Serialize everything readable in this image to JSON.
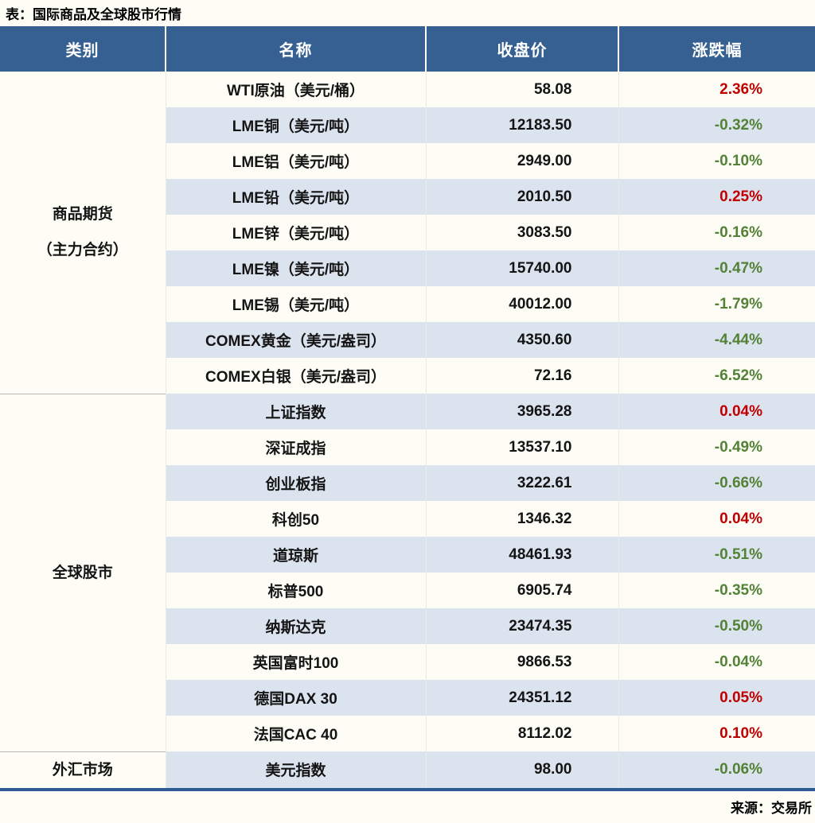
{
  "title": "表：国际商品及全球股市行情",
  "source": "来源：交易所",
  "colors": {
    "page_bg": "#FDFDF6",
    "header_bg": "#366092",
    "header_text": "#FFFFFF",
    "row_alt_bg": "#DBE3EF",
    "positive_red": "#C00000",
    "negative_green": "#538135",
    "bottom_border_blue": "#2E5B96",
    "group_divider_gray": "#B9B9B9"
  },
  "table": {
    "headers": [
      "类别",
      "名称",
      "收盘价",
      "涨跌幅"
    ],
    "groups": [
      {
        "category": "商品期货（主力合约）",
        "category_lines": [
          "商品期货",
          "（主力合约）"
        ],
        "rows": [
          {
            "name": "WTI原油（美元/桶）",
            "close": "58.08",
            "change": "2.36%"
          },
          {
            "name": "LME铜（美元/吨）",
            "close": "12183.50",
            "change": "-0.32%"
          },
          {
            "name": "LME铝（美元/吨）",
            "close": "2949.00",
            "change": "-0.10%"
          },
          {
            "name": "LME铅（美元/吨）",
            "close": "2010.50",
            "change": "0.25%"
          },
          {
            "name": "LME锌（美元/吨）",
            "close": "3083.50",
            "change": "-0.16%"
          },
          {
            "name": "LME镍（美元/吨）",
            "close": "15740.00",
            "change": "-0.47%"
          },
          {
            "name": "LME锡（美元/吨）",
            "close": "40012.00",
            "change": "-1.79%"
          },
          {
            "name": "COMEX黄金（美元/盎司）",
            "close": "4350.60",
            "change": "-4.44%"
          },
          {
            "name": "COMEX白银（美元/盎司）",
            "close": "72.16",
            "change": "-6.52%"
          }
        ]
      },
      {
        "category": "全球股市",
        "category_lines": [
          "全球股市"
        ],
        "rows": [
          {
            "name": "上证指数",
            "close": "3965.28",
            "change": "0.04%"
          },
          {
            "name": "深证成指",
            "close": "13537.10",
            "change": "-0.49%"
          },
          {
            "name": "创业板指",
            "close": "3222.61",
            "change": "-0.66%"
          },
          {
            "name": "科创50",
            "close": "1346.32",
            "change": "0.04%"
          },
          {
            "name": "道琼斯",
            "close": "48461.93",
            "change": "-0.51%"
          },
          {
            "name": "标普500",
            "close": "6905.74",
            "change": "-0.35%"
          },
          {
            "name": "纳斯达克",
            "close": "23474.35",
            "change": "-0.50%"
          },
          {
            "name": "英国富时100",
            "close": "9866.53",
            "change": "-0.04%"
          },
          {
            "name": "德国DAX 30",
            "close": "24351.12",
            "change": "0.05%"
          },
          {
            "name": "法国CAC 40",
            "close": "8112.02",
            "change": "0.10%"
          }
        ]
      },
      {
        "category": "外汇市场",
        "category_lines": [
          "外汇市场"
        ],
        "rows": [
          {
            "name": "美元指数",
            "close": "98.00",
            "change": "-0.06%"
          }
        ]
      }
    ]
  },
  "chart_data": {
    "type": "table",
    "title": "表：国际商品及全球股市行情",
    "columns": [
      "类别",
      "名称",
      "收盘价",
      "涨跌幅"
    ],
    "rows": [
      [
        "商品期货（主力合约）",
        "WTI原油（美元/桶）",
        58.08,
        "2.36%"
      ],
      [
        "商品期货（主力合约）",
        "LME铜（美元/吨）",
        12183.5,
        "-0.32%"
      ],
      [
        "商品期货（主力合约）",
        "LME铝（美元/吨）",
        2949.0,
        "-0.10%"
      ],
      [
        "商品期货（主力合约）",
        "LME铅（美元/吨）",
        2010.5,
        "0.25%"
      ],
      [
        "商品期货（主力合约）",
        "LME锌（美元/吨）",
        3083.5,
        "-0.16%"
      ],
      [
        "商品期货（主力合约）",
        "LME镍（美元/吨）",
        15740.0,
        "-0.47%"
      ],
      [
        "商品期货（主力合约）",
        "LME锡（美元/吨）",
        40012.0,
        "-1.79%"
      ],
      [
        "商品期货（主力合约）",
        "COMEX黄金（美元/盎司）",
        4350.6,
        "-4.44%"
      ],
      [
        "商品期货（主力合约）",
        "COMEX白银（美元/盎司）",
        72.16,
        "-6.52%"
      ],
      [
        "全球股市",
        "上证指数",
        3965.28,
        "0.04%"
      ],
      [
        "全球股市",
        "深证成指",
        13537.1,
        "-0.49%"
      ],
      [
        "全球股市",
        "创业板指",
        3222.61,
        "-0.66%"
      ],
      [
        "全球股市",
        "科创50",
        1346.32,
        "0.04%"
      ],
      [
        "全球股市",
        "道琼斯",
        48461.93,
        "-0.51%"
      ],
      [
        "全球股市",
        "标普500",
        6905.74,
        "-0.35%"
      ],
      [
        "全球股市",
        "纳斯达克",
        23474.35,
        "-0.50%"
      ],
      [
        "全球股市",
        "英国富时100",
        9866.53,
        "-0.04%"
      ],
      [
        "全球股市",
        "德国DAX 30",
        24351.12,
        "0.05%"
      ],
      [
        "全球股市",
        "法国CAC 40",
        8112.02,
        "0.10%"
      ],
      [
        "外汇市场",
        "美元指数",
        98.0,
        "-0.06%"
      ]
    ],
    "source": "来源：交易所",
    "layout_hints": {
      "zebra_striping": true,
      "positive_change_color": "red",
      "negative_change_color": "green",
      "category_column_merged": true
    }
  }
}
